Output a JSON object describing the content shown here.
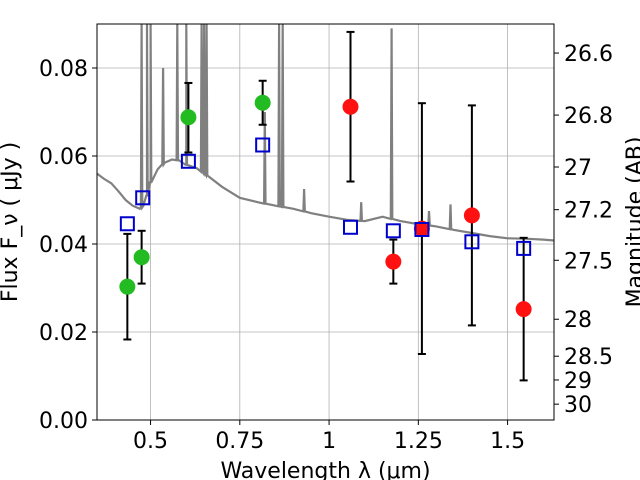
{
  "chart_data": {
    "type": "scatter",
    "xlabel": "Wavelength  λ (μm)",
    "ylabel": "Flux  F_ν  ( μJy )",
    "y2label": "Magnitude (AB)",
    "xlim": [
      0.35,
      1.63
    ],
    "ylim": [
      0.0,
      0.09
    ],
    "grid": true,
    "x_ticks": [
      0.5,
      0.75,
      1,
      1.25,
      1.5
    ],
    "x_tick_labels": [
      "0.5",
      "0.75",
      "1",
      "1.25",
      "1.5"
    ],
    "y_ticks": [
      0.0,
      0.02,
      0.04,
      0.06,
      0.08
    ],
    "y_tick_labels": [
      "0.00",
      "0.02",
      "0.04",
      "0.06",
      "0.08"
    ],
    "y2_ticks": [
      {
        "flux": 0.0834,
        "label": "26.6"
      },
      {
        "flux": 0.0693,
        "label": "26.8"
      },
      {
        "flux": 0.0575,
        "label": "27"
      },
      {
        "flux": 0.0478,
        "label": "27.2"
      },
      {
        "flux": 0.0363,
        "label": "27.5"
      },
      {
        "flux": 0.0229,
        "label": "28"
      },
      {
        "flux": 0.0145,
        "label": "28.5"
      },
      {
        "flux": 0.0091,
        "label": "29"
      },
      {
        "flux": 0.0036,
        "label": "30"
      }
    ],
    "series": [
      {
        "marker": "circle",
        "color": "#22bb22",
        "points": [
          {
            "x": 0.435,
            "y": 0.0303,
            "err_low": 0.012,
            "err_high": 0.012
          },
          {
            "x": 0.475,
            "y": 0.037,
            "err_low": 0.006,
            "err_high": 0.006
          },
          {
            "x": 0.606,
            "y": 0.0688,
            "err_low": 0.008,
            "err_high": 0.0078
          },
          {
            "x": 0.814,
            "y": 0.0721,
            "err_low": 0.005,
            "err_high": 0.005
          }
        ]
      },
      {
        "marker": "circle",
        "color": "#ff1111",
        "points": [
          {
            "x": 1.06,
            "y": 0.0712,
            "err_low": 0.017,
            "err_high": 0.017
          },
          {
            "x": 1.18,
            "y": 0.036,
            "err_low": 0.005,
            "err_high": 0.005
          },
          {
            "x": 1.26,
            "y": 0.0435,
            "err_low": 0.0285,
            "err_high": 0.0285
          },
          {
            "x": 1.4,
            "y": 0.0465,
            "err_low": 0.025,
            "err_high": 0.025
          },
          {
            "x": 1.545,
            "y": 0.0252,
            "err_low": 0.0162,
            "err_high": 0.0162
          }
        ]
      },
      {
        "marker": "open-square",
        "color": "#0000cc",
        "points": [
          {
            "x": 0.435,
            "y": 0.0446
          },
          {
            "x": 0.478,
            "y": 0.0505
          },
          {
            "x": 0.606,
            "y": 0.0588
          },
          {
            "x": 0.814,
            "y": 0.0625
          },
          {
            "x": 1.06,
            "y": 0.0438
          },
          {
            "x": 1.18,
            "y": 0.043
          },
          {
            "x": 1.26,
            "y": 0.0433
          },
          {
            "x": 1.4,
            "y": 0.0405
          },
          {
            "x": 1.545,
            "y": 0.039
          }
        ]
      },
      {
        "type": "line",
        "color": "#808080",
        "points": [
          [
            0.35,
            0.056
          ],
          [
            0.37,
            0.0548
          ],
          [
            0.39,
            0.0538
          ],
          [
            0.41,
            0.052
          ],
          [
            0.43,
            0.05
          ],
          [
            0.45,
            0.0487
          ],
          [
            0.47,
            0.048
          ],
          [
            0.48,
            0.0487
          ],
          [
            0.49,
            0.051
          ],
          [
            0.5,
            0.054
          ],
          [
            0.52,
            0.057
          ],
          [
            0.54,
            0.0585
          ],
          [
            0.56,
            0.0592
          ],
          [
            0.58,
            0.059
          ],
          [
            0.6,
            0.058
          ],
          [
            0.63,
            0.0572
          ],
          [
            0.66,
            0.0555
          ],
          [
            0.7,
            0.053
          ],
          [
            0.75,
            0.0505
          ],
          [
            0.8,
            0.0495
          ],
          [
            0.85,
            0.0487
          ],
          [
            0.9,
            0.048
          ],
          [
            0.95,
            0.047
          ],
          [
            1.0,
            0.0462
          ],
          [
            1.05,
            0.0455
          ],
          [
            1.1,
            0.0452
          ],
          [
            1.15,
            0.0462
          ],
          [
            1.2,
            0.0452
          ],
          [
            1.25,
            0.0445
          ],
          [
            1.3,
            0.044
          ],
          [
            1.35,
            0.0432
          ],
          [
            1.4,
            0.0425
          ],
          [
            1.45,
            0.0418
          ],
          [
            1.5,
            0.0413
          ],
          [
            1.55,
            0.0412
          ],
          [
            1.6,
            0.041
          ],
          [
            1.63,
            0.0408
          ]
        ],
        "emission_peaks": [
          {
            "x": 0.475,
            "y": 0.09
          },
          {
            "x": 0.49,
            "y": 0.09
          },
          {
            "x": 0.5,
            "y": 0.09
          },
          {
            "x": 0.535,
            "y": 0.08
          },
          {
            "x": 0.575,
            "y": 0.09
          },
          {
            "x": 0.6,
            "y": 0.09
          },
          {
            "x": 0.643,
            "y": 0.09
          },
          {
            "x": 0.65,
            "y": 0.09
          },
          {
            "x": 0.657,
            "y": 0.09
          },
          {
            "x": 0.82,
            "y": 0.07
          },
          {
            "x": 0.86,
            "y": 0.09
          },
          {
            "x": 0.87,
            "y": 0.09
          },
          {
            "x": 0.93,
            "y": 0.0525
          },
          {
            "x": 1.09,
            "y": 0.0495
          },
          {
            "x": 1.175,
            "y": 0.089
          },
          {
            "x": 1.28,
            "y": 0.0475
          },
          {
            "x": 1.34,
            "y": 0.049
          }
        ]
      }
    ]
  }
}
